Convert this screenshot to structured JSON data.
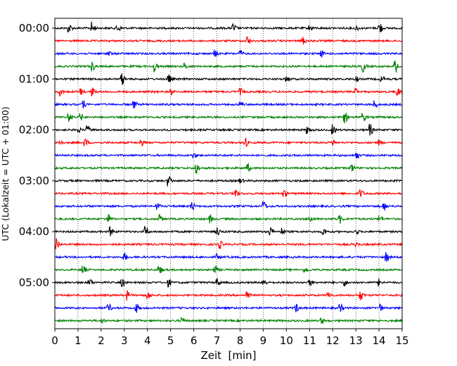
{
  "chart_data": {
    "type": "line",
    "xlabel": "Zeit  [min]",
    "ylabel": "UTC (Lokalzeit = UTC + 01:00)",
    "xlim": [
      0,
      15
    ],
    "x_ticks": [
      "0",
      "1",
      "2",
      "3",
      "4",
      "5",
      "6",
      "7",
      "8",
      "9",
      "10",
      "11",
      "12",
      "13",
      "14",
      "15"
    ],
    "y_tick_labels": [
      "00:00",
      "01:00",
      "02:00",
      "03:00",
      "04:00",
      "05:00"
    ],
    "trace_interval_minutes": 15,
    "trace_count": 24,
    "trace_colors": [
      "#000000",
      "#ff0000",
      "#0000ff",
      "#008000"
    ],
    "grid": "vertical dotted lines at each minute",
    "series": [
      {
        "start": "00:00",
        "events": [
          [
            0.6,
            1.0
          ],
          [
            1.6,
            1.4
          ],
          [
            2.7,
            0.9
          ],
          [
            7.7,
            1.0
          ],
          [
            11.0,
            0.6
          ],
          [
            13.0,
            0.6
          ],
          [
            14.0,
            1.6
          ]
        ]
      },
      {
        "start": "00:15",
        "events": [
          [
            8.3,
            1.1
          ],
          [
            10.7,
            0.9
          ]
        ]
      },
      {
        "start": "00:30",
        "events": [
          [
            2.3,
            0.6
          ],
          [
            6.9,
            0.8
          ],
          [
            8.0,
            0.7
          ],
          [
            11.5,
            0.6
          ]
        ]
      },
      {
        "start": "00:45",
        "events": [
          [
            1.6,
            1.0
          ],
          [
            4.3,
            1.3
          ],
          [
            5.6,
            0.7
          ],
          [
            13.3,
            1.3
          ],
          [
            14.7,
            1.5
          ]
        ]
      },
      {
        "start": "01:00",
        "events": [
          [
            2.9,
            1.3
          ],
          [
            4.9,
            1.0
          ],
          [
            10.0,
            0.6
          ],
          [
            13.0,
            0.6
          ],
          [
            14.1,
            0.7
          ]
        ]
      },
      {
        "start": "01:15",
        "events": [
          [
            0.2,
            1.0
          ],
          [
            1.1,
            0.8
          ],
          [
            1.6,
            1.0
          ],
          [
            5.0,
            0.6
          ],
          [
            8.0,
            0.7
          ],
          [
            13.0,
            0.7
          ],
          [
            14.8,
            0.9
          ]
        ]
      },
      {
        "start": "01:30",
        "events": [
          [
            1.2,
            1.0
          ],
          [
            3.4,
            1.0
          ],
          [
            8.0,
            0.6
          ],
          [
            13.8,
            0.9
          ]
        ]
      },
      {
        "start": "01:45",
        "events": [
          [
            0.6,
            1.0
          ],
          [
            1.1,
            0.8
          ],
          [
            12.5,
            1.4
          ],
          [
            13.3,
            1.1
          ]
        ]
      },
      {
        "start": "02:00",
        "events": [
          [
            1.0,
            0.6
          ],
          [
            1.4,
            0.9
          ],
          [
            10.9,
            0.9
          ],
          [
            12.0,
            1.2
          ],
          [
            13.6,
            1.4
          ]
        ]
      },
      {
        "start": "02:15",
        "events": [
          [
            0.2,
            0.9
          ],
          [
            1.3,
            1.0
          ],
          [
            3.7,
            0.8
          ],
          [
            8.2,
            1.1
          ],
          [
            12.0,
            0.6
          ],
          [
            14.0,
            0.6
          ]
        ]
      },
      {
        "start": "02:30",
        "events": [
          [
            6.0,
            0.5
          ],
          [
            13.0,
            1.0
          ]
        ]
      },
      {
        "start": "02:45",
        "events": [
          [
            6.1,
            1.2
          ],
          [
            8.3,
            1.0
          ],
          [
            12.8,
            1.0
          ]
        ]
      },
      {
        "start": "03:00",
        "events": [
          [
            4.9,
            1.3
          ],
          [
            8.0,
            0.5
          ]
        ]
      },
      {
        "start": "03:15",
        "events": [
          [
            7.8,
            1.2
          ],
          [
            9.9,
            0.9
          ],
          [
            13.2,
            0.9
          ]
        ]
      },
      {
        "start": "03:30",
        "events": [
          [
            4.4,
            0.8
          ],
          [
            5.9,
            1.1
          ],
          [
            9.0,
            1.2
          ],
          [
            14.2,
            1.0
          ]
        ]
      },
      {
        "start": "03:45",
        "events": [
          [
            2.3,
            1.0
          ],
          [
            4.5,
            1.0
          ],
          [
            6.7,
            0.9
          ],
          [
            11.0,
            0.8
          ],
          [
            12.3,
            1.0
          ],
          [
            14.0,
            0.8
          ]
        ]
      },
      {
        "start": "04:00",
        "events": [
          [
            2.4,
            1.0
          ],
          [
            3.9,
            1.1
          ],
          [
            7.0,
            1.0
          ],
          [
            9.3,
            1.0
          ],
          [
            9.8,
            0.8
          ],
          [
            11.6,
            0.8
          ],
          [
            13.0,
            0.6
          ]
        ]
      },
      {
        "start": "04:15",
        "events": [
          [
            0.05,
            1.7
          ],
          [
            7.1,
            1.0
          ],
          [
            13.0,
            0.5
          ]
        ]
      },
      {
        "start": "04:30",
        "events": [
          [
            3.0,
            0.9
          ],
          [
            7.0,
            0.6
          ],
          [
            14.3,
            1.3
          ]
        ]
      },
      {
        "start": "04:45",
        "events": [
          [
            1.2,
            1.1
          ],
          [
            4.5,
            1.0
          ],
          [
            6.9,
            1.0
          ],
          [
            10.8,
            0.7
          ]
        ]
      },
      {
        "start": "05:00",
        "events": [
          [
            1.5,
            0.9
          ],
          [
            2.9,
            1.0
          ],
          [
            4.9,
            0.9
          ],
          [
            7.0,
            0.9
          ],
          [
            9.0,
            0.8
          ],
          [
            11.0,
            0.8
          ],
          [
            12.5,
            0.8
          ],
          [
            14.0,
            0.8
          ]
        ]
      },
      {
        "start": "05:15",
        "events": [
          [
            3.1,
            1.1
          ],
          [
            4.0,
            0.9
          ],
          [
            8.3,
            1.1
          ],
          [
            11.8,
            0.9
          ],
          [
            13.2,
            1.1
          ]
        ]
      },
      {
        "start": "05:30",
        "events": [
          [
            2.3,
            1.0
          ],
          [
            3.5,
            1.1
          ],
          [
            10.4,
            1.0
          ],
          [
            12.3,
            1.0
          ],
          [
            14.0,
            1.2
          ]
        ]
      },
      {
        "start": "05:45",
        "events": [
          [
            2.0,
            0.6
          ],
          [
            5.5,
            0.6
          ],
          [
            11.5,
            0.8
          ]
        ]
      }
    ]
  }
}
